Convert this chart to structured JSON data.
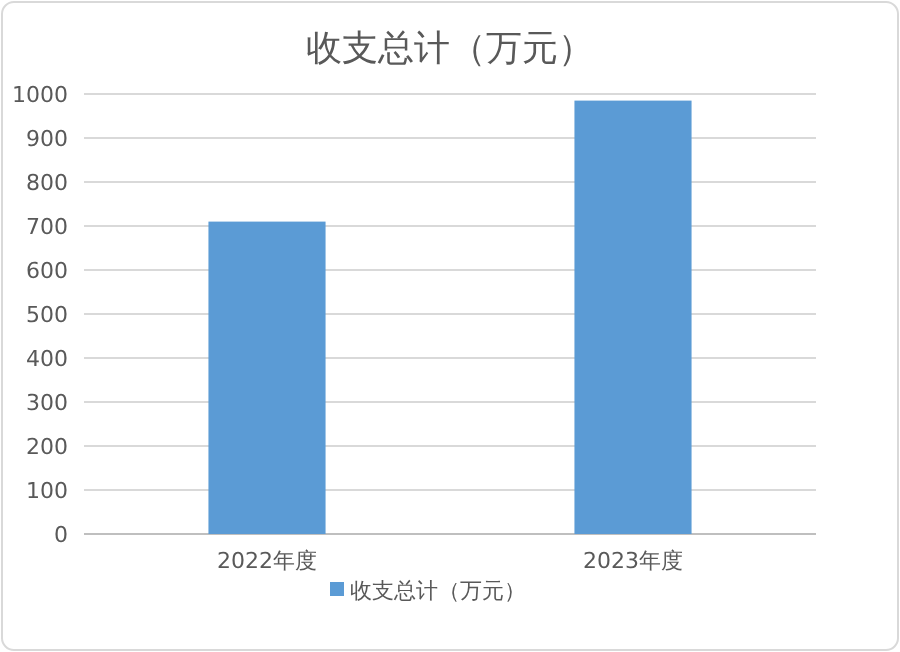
{
  "chart_data": {
    "type": "bar",
    "title": "收支总计（万元）",
    "categories": [
      "2022年度",
      "2023年度"
    ],
    "series": [
      {
        "name": "收支总计（万元）",
        "color": "#5b9bd5",
        "values": [
          710,
          985
        ]
      }
    ],
    "ylim": [
      0,
      1000
    ],
    "yticks": [
      0,
      100,
      200,
      300,
      400,
      500,
      600,
      700,
      800,
      900,
      1000
    ],
    "grid": "y",
    "legend": "bottom"
  }
}
